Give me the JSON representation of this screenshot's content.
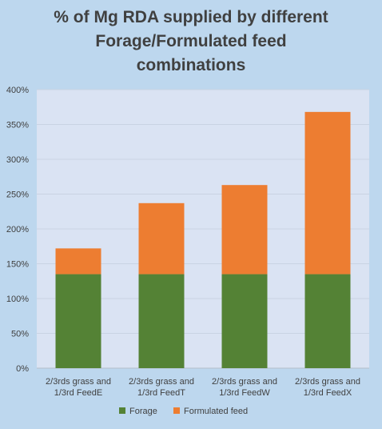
{
  "chart_data": {
    "type": "bar",
    "stacked": true,
    "title_lines": [
      "% of Mg RDA supplied by different",
      "Forage/Formulated feed",
      "combinations"
    ],
    "categories": [
      [
        "2/3rds grass and",
        "1/3rd FeedE"
      ],
      [
        "2/3rds grass and",
        "1/3rd FeedT"
      ],
      [
        "2/3rds grass and",
        "1/3rd FeedW"
      ],
      [
        "2/3rds grass and",
        "1/3rd FeedX"
      ]
    ],
    "series": [
      {
        "name": "Forage",
        "color": "#548235",
        "values": [
          135,
          135,
          135,
          135
        ]
      },
      {
        "name": "Formulated feed",
        "color": "#ed7d31",
        "values": [
          37,
          102,
          128,
          233
        ]
      }
    ],
    "ylim": [
      0,
      400
    ],
    "yticks": [
      0,
      50,
      100,
      150,
      200,
      250,
      300,
      350,
      400
    ],
    "ytick_suffix": "%",
    "grid": true,
    "legend_position": "bottom",
    "colors": {
      "page_background": "#bdd7ee",
      "plot_background": "#dae3f3",
      "gridline": "#c9d3e3",
      "text": "#404040"
    }
  }
}
